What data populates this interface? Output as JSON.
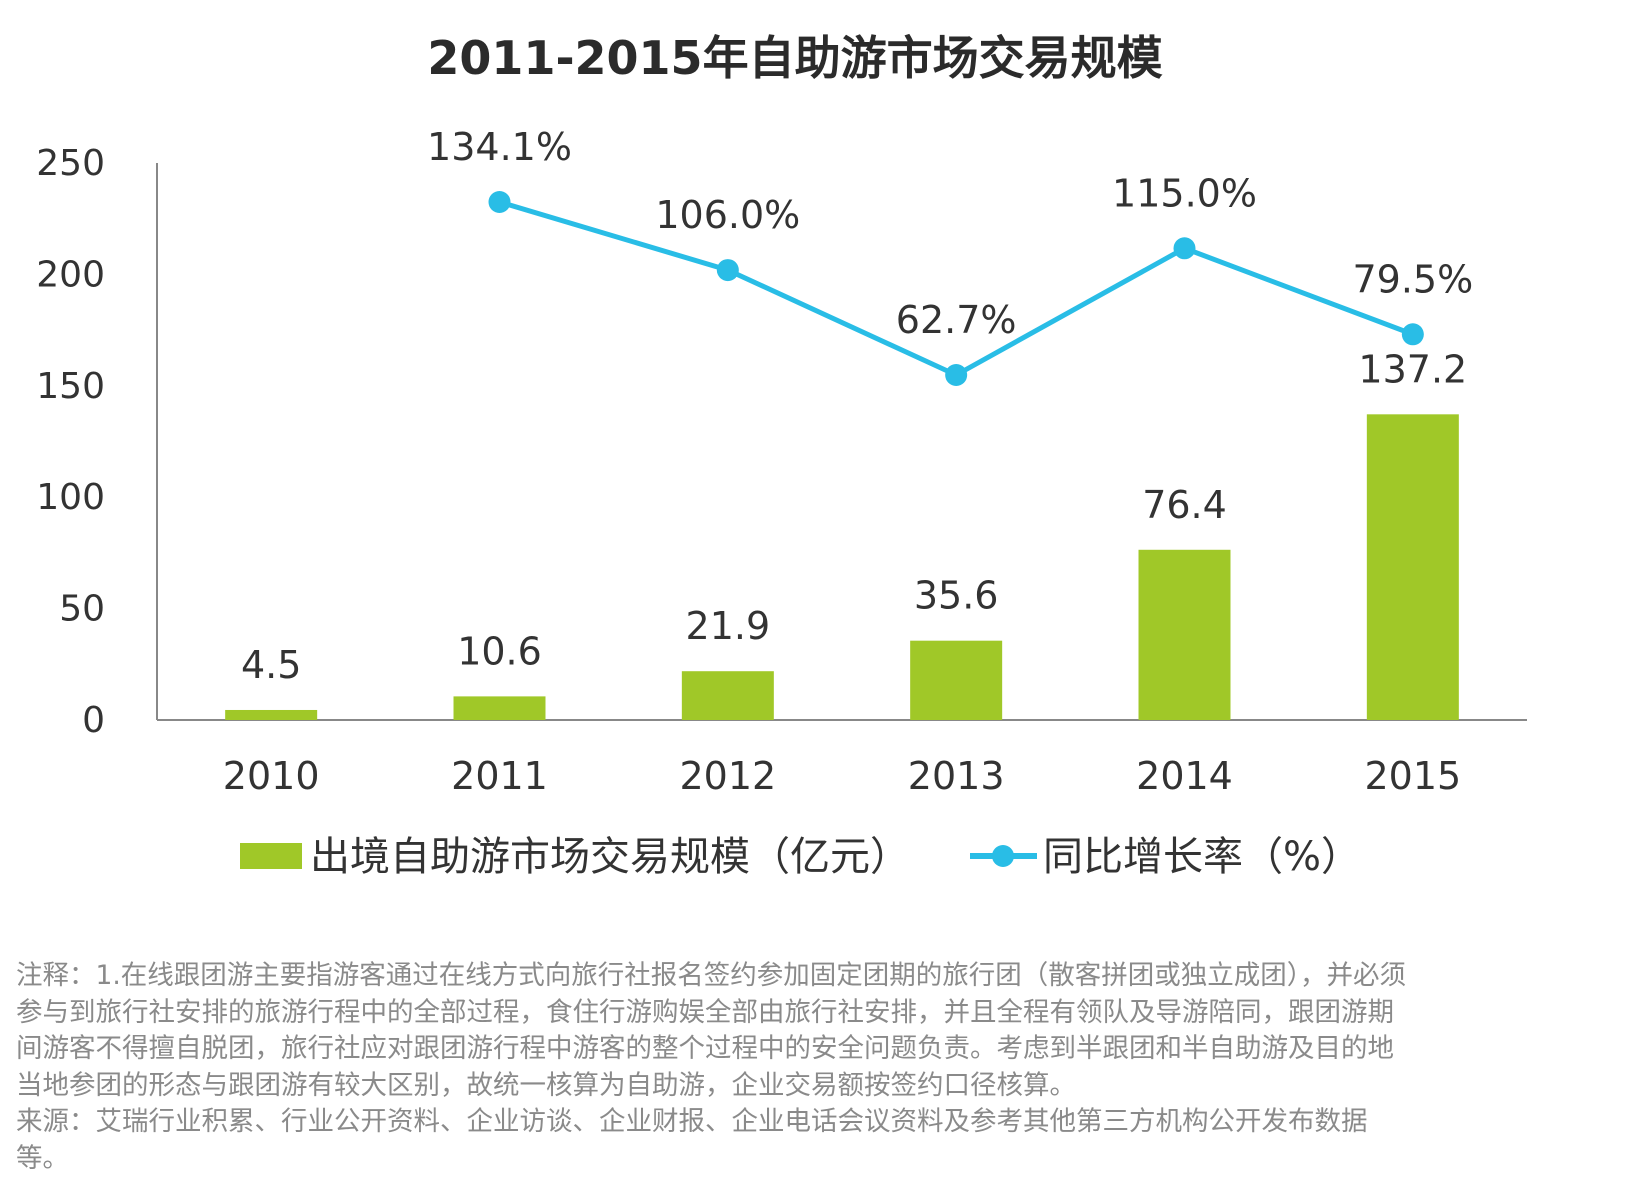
{
  "chart_data": {
    "type": "bar",
    "title": "2011-2015年自助游市场交易规模",
    "categories": [
      "2010",
      "2011",
      "2012",
      "2013",
      "2014",
      "2015"
    ],
    "ylim": [
      0,
      250
    ],
    "yticks": [
      "0",
      "50",
      "100",
      "150",
      "200",
      "250"
    ],
    "series": [
      {
        "name": "出境自助游市场交易规模（亿元）",
        "kind": "bar",
        "color": "#a0c828",
        "values": [
          4.5,
          10.6,
          21.9,
          35.6,
          76.4,
          137.2
        ],
        "labels": [
          "4.5",
          "10.6",
          "21.9",
          "35.6",
          "76.4",
          "137.2"
        ]
      },
      {
        "name": "同比增长率（%）",
        "kind": "line",
        "color": "#29bde6",
        "values": [
          null,
          134.1,
          106.0,
          62.7,
          115.0,
          79.5
        ],
        "labels": [
          "",
          "134.1%",
          "106.0%",
          "62.7%",
          "115.0%",
          "79.5%"
        ],
        "line_range": [
          0,
          200
        ]
      }
    ],
    "legend_position": "bottom"
  },
  "notes": {
    "lines": [
      "注释：1.在线跟团游主要指游客通过在线方式向旅行社报名签约参加固定团期的旅行团（散客拼团或独立成团），并必须",
      "参与到旅行社安排的旅游行程中的全部过程，食住行游购娱全部由旅行社安排，并且全程有领队及导游陪同，跟团游期",
      "间游客不得擅自脱团，旅行社应对跟团游行程中游客的整个过程中的安全问题负责。考虑到半跟团和半自助游及目的地",
      "当地参团的形态与跟团游有较大区别，故统一核算为自助游，企业交易额按签约口径核算。",
      "来源：艾瑞行业积累、行业公开资料、企业访谈、企业财报、企业电话会议资料及参考其他第三方机构公开发布数据",
      "等。"
    ]
  }
}
